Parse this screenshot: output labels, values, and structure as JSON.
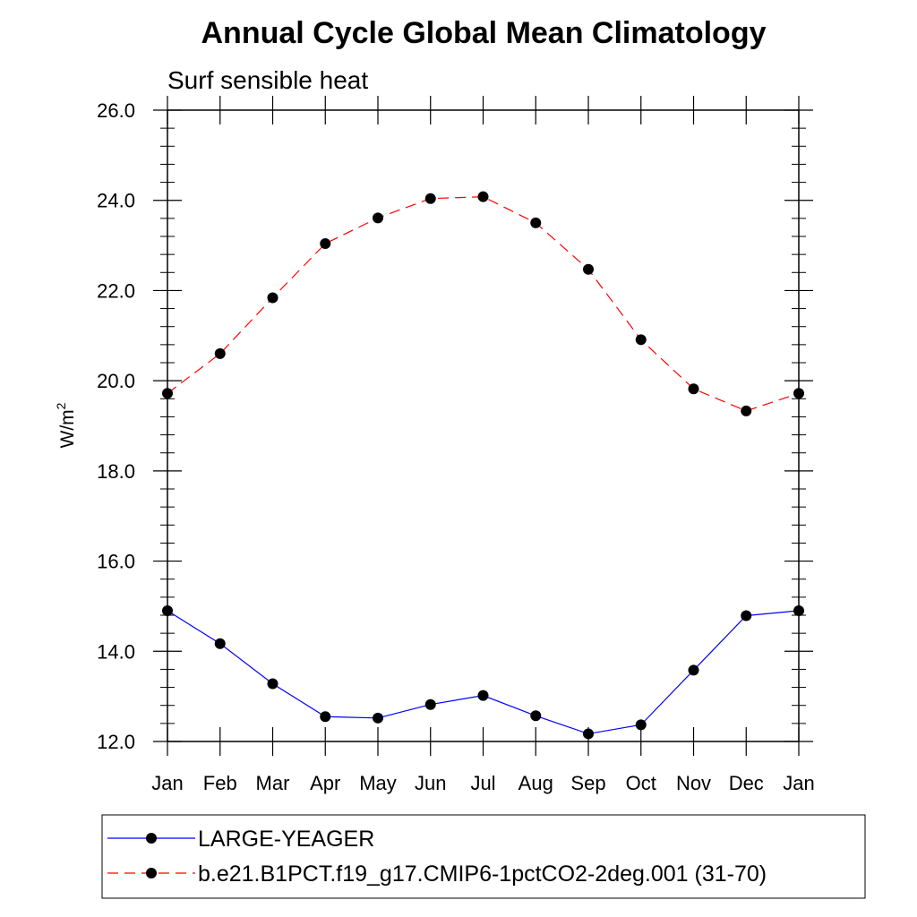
{
  "title": "Annual Cycle Global Mean Climatology",
  "chart_data": {
    "type": "line",
    "title": "Annual Cycle Global Mean Climatology",
    "subtitle": "Surf sensible heat",
    "xlabel": "",
    "ylabel": "W/m",
    "ylabel_superscript": "2",
    "categories": [
      "Jan",
      "Feb",
      "Mar",
      "Apr",
      "May",
      "Jun",
      "Jul",
      "Aug",
      "Sep",
      "Oct",
      "Nov",
      "Dec",
      "Jan"
    ],
    "ylim": [
      12.0,
      26.0
    ],
    "yticks": [
      "12.0",
      "14.0",
      "16.0",
      "18.0",
      "20.0",
      "22.0",
      "24.0",
      "26.0"
    ],
    "grid": false,
    "legend_position": "bottom",
    "series": [
      {
        "name": "LARGE-YEAGER",
        "color": "#0000ff",
        "line_style": "solid",
        "marker": "filled-circle",
        "values": [
          14.9,
          14.17,
          13.28,
          12.55,
          12.52,
          12.82,
          13.02,
          12.57,
          12.17,
          12.37,
          13.58,
          14.79,
          14.9
        ]
      },
      {
        "name": "b.e21.B1PCT.f19_g17.CMIP6-1pctCO2-2deg.001 (31-70)",
        "color": "#ff0000",
        "line_style": "dashed",
        "marker": "filled-circle",
        "values": [
          19.72,
          20.6,
          21.84,
          23.04,
          23.61,
          24.04,
          24.08,
          23.5,
          22.47,
          20.91,
          19.82,
          19.33,
          19.72
        ]
      }
    ]
  }
}
